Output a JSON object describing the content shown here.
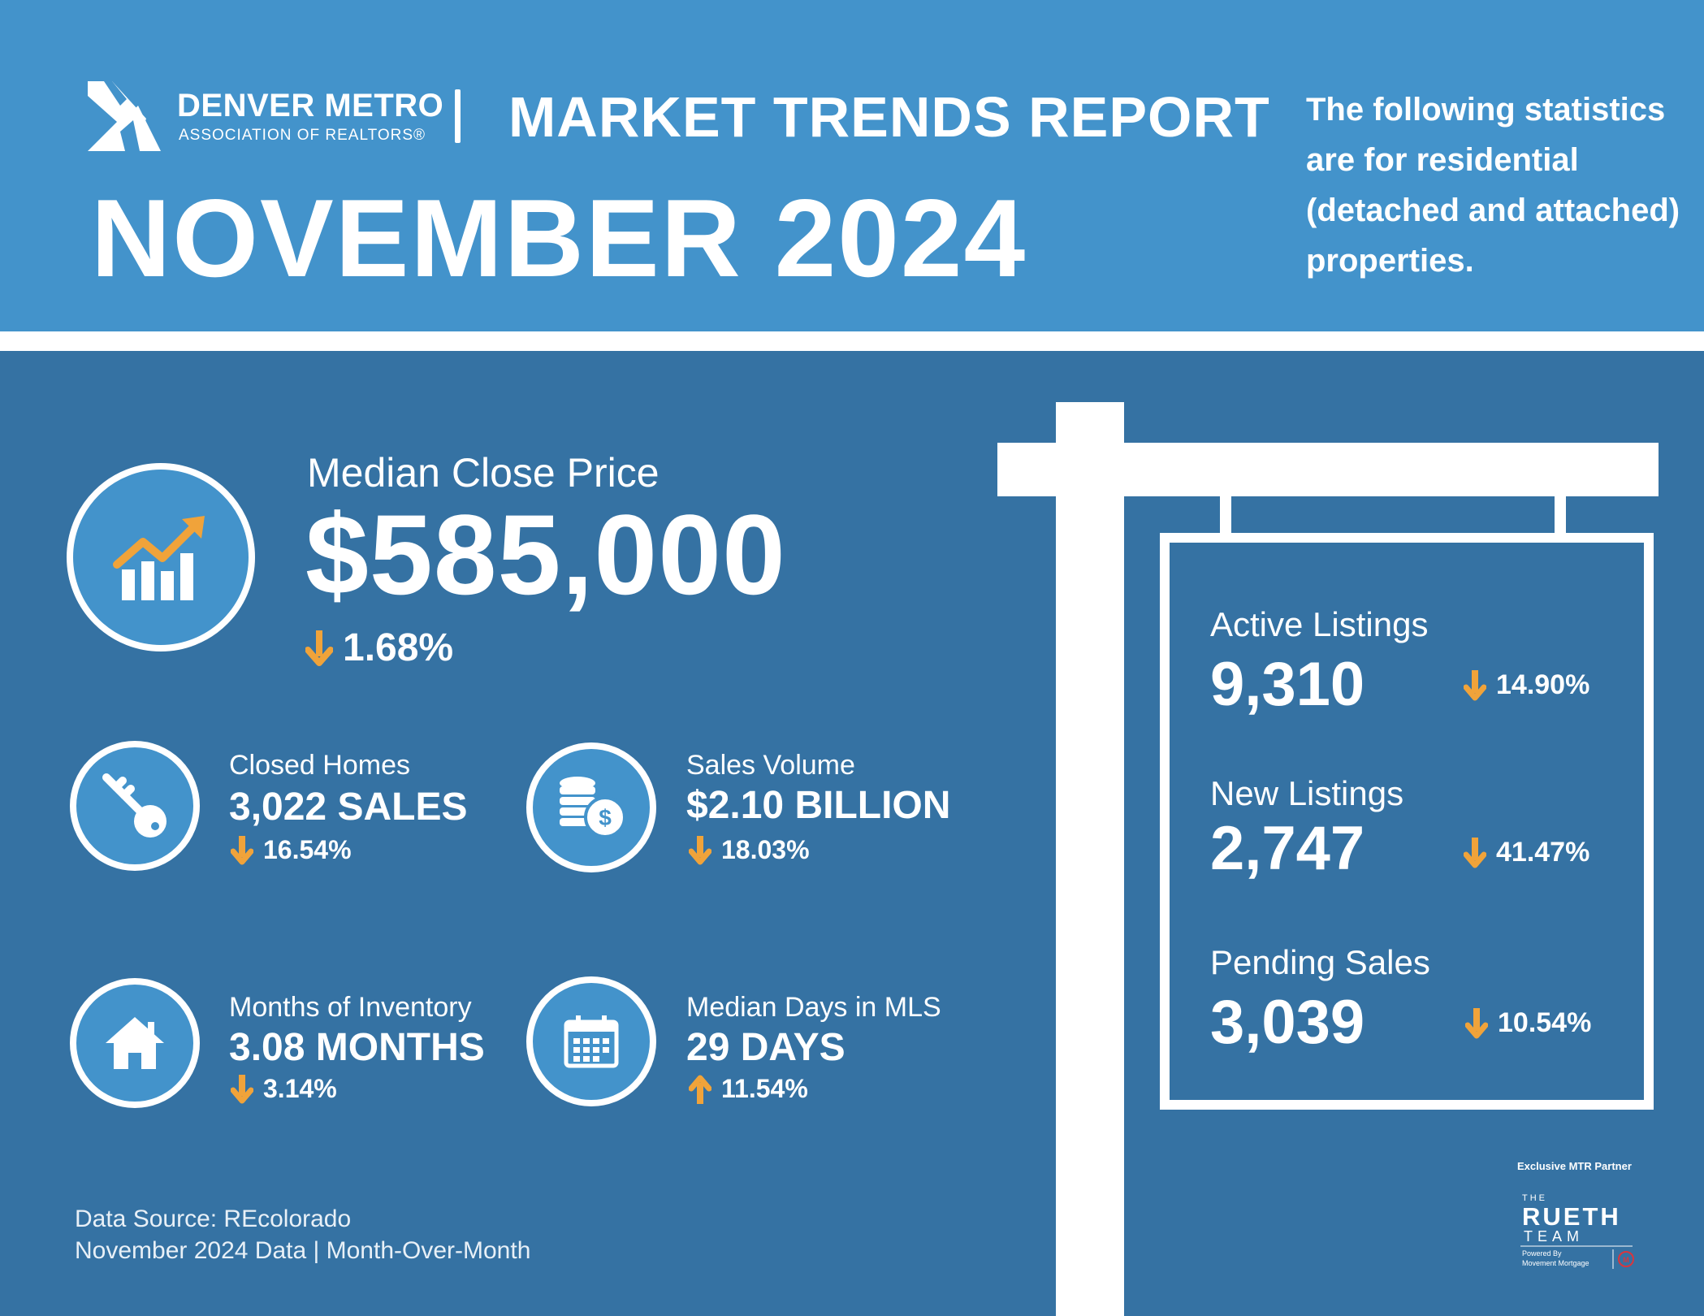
{
  "header": {
    "org_name": "DENVER METRO",
    "org_subtitle": "ASSOCIATION OF REALTORS®",
    "report_title": "MARKET TRENDS REPORT",
    "month_title": "NOVEMBER 2024",
    "note": "The following statistics are for residential (detached and attached) properties."
  },
  "headline": {
    "label": "Median Close Price",
    "value": "$585,000",
    "change": "1.68%",
    "direction": "down",
    "icon": "growth-chart-icon"
  },
  "stats": [
    {
      "label": "Closed Homes",
      "value": "3,022 SALES",
      "change": "16.54%",
      "direction": "down",
      "icon": "key-icon"
    },
    {
      "label": "Sales Volume",
      "value": "$2.10 BILLION",
      "change": "18.03%",
      "direction": "down",
      "icon": "coins-icon"
    },
    {
      "label": "Months of Inventory",
      "value": "3.08 MONTHS",
      "change": "3.14%",
      "direction": "down",
      "icon": "house-icon"
    },
    {
      "label": "Median Days in MLS",
      "value": "29 DAYS",
      "change": "11.54%",
      "direction": "up",
      "icon": "calendar-icon"
    }
  ],
  "sign": {
    "items": [
      {
        "label": "Active Listings",
        "value": "9,310",
        "change": "14.90%",
        "direction": "down"
      },
      {
        "label": "New Listings",
        "value": "2,747",
        "change": "41.47%",
        "direction": "down"
      },
      {
        "label": "Pending Sales",
        "value": "3,039",
        "change": "10.54%",
        "direction": "down"
      }
    ]
  },
  "footer": {
    "line1": "Data Source: REcolorado",
    "line2": "November 2024 Data | Month-Over-Month"
  },
  "partner": {
    "label": "Exclusive MTR Partner",
    "the": "THE",
    "name": "RUETH",
    "team": "TEAM",
    "powered": "Powered By",
    "company": "Movement Mortgage"
  },
  "colors": {
    "header_blue": "#4393cb",
    "main_blue": "#3572a3",
    "accent_orange": "#f0a33a",
    "white": "#ffffff"
  }
}
